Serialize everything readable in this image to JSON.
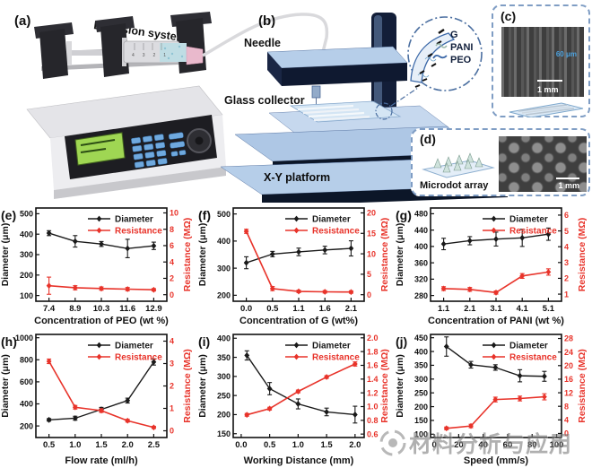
{
  "panels": {
    "a": {
      "letter": "(a)",
      "title": "Extrusion system",
      "syringe_scale_marks": "4 3 2 1"
    },
    "b": {
      "letter": "(b)",
      "needle_label": "Needle",
      "collector_label": "Glass collector",
      "platform_label": "X-Y platform",
      "inset": {
        "items": [
          {
            "label": "G"
          },
          {
            "label": "PANI"
          },
          {
            "label": "PEO"
          }
        ]
      }
    },
    "c": {
      "letter": "(c)",
      "annotation": "60 μm",
      "scale_bar": "1 mm"
    },
    "d": {
      "letter": "(d)",
      "label": "Microdot array",
      "scale_bar": "1 mm"
    }
  },
  "watermark": {
    "text": "材料分析与应用"
  },
  "colors": {
    "diameter": "#1a1a1a",
    "resistance": "#e8332a",
    "platform_face": "#b3cbe7",
    "platform_edge": "#0e1830",
    "inset_blue": "#3b68a8"
  },
  "chart_data": [
    {
      "id": "e",
      "letter": "(e)",
      "type": "line",
      "xlabel": "Concentration of PEO (wt %)",
      "x_categories": [
        "7.4",
        "8.9",
        "10.3",
        "11.6",
        "12.9"
      ],
      "left_axis": {
        "label": "Diameter (μm)",
        "lim": [
          72,
          528
        ],
        "ticks": [
          "100",
          "200",
          "300",
          "400",
          "500"
        ]
      },
      "right_axis": {
        "label": "Resistance (MΩ)",
        "lim": [
          -0.8,
          10.6
        ],
        "ticks": [
          "0",
          "2",
          "4",
          "6",
          "8",
          "10"
        ]
      },
      "series": [
        {
          "name": "Diameter",
          "axis": "left",
          "color_key": "diameter",
          "values": [
            405,
            365,
            352,
            330,
            343
          ],
          "errors": [
            12,
            28,
            12,
            45,
            18
          ]
        },
        {
          "name": "Resistance",
          "axis": "right",
          "color_key": "resistance",
          "values": [
            1.1,
            0.85,
            0.75,
            0.68,
            0.6
          ],
          "errors": [
            1.05,
            0.25,
            0.2,
            0.2,
            0.15
          ]
        }
      ]
    },
    {
      "id": "f",
      "letter": "(f)",
      "type": "line",
      "xlabel": "Concentration of G (wt%)",
      "x_categories": [
        "0.0",
        "0.5",
        "1.1",
        "1.6",
        "2.1"
      ],
      "left_axis": {
        "label": "Diameter (μm)",
        "lim": [
          178,
          522
        ],
        "ticks": [
          "200",
          "300",
          "400",
          "500"
        ]
      },
      "right_axis": {
        "label": "Resistance (MΩ)",
        "lim": [
          -1.6,
          21.2
        ],
        "ticks": [
          "0",
          "5",
          "10",
          "15",
          "20"
        ]
      },
      "series": [
        {
          "name": "Diameter",
          "axis": "left",
          "color_key": "diameter",
          "values": [
            320,
            352,
            360,
            367,
            373
          ],
          "errors": [
            22,
            10,
            14,
            14,
            28
          ]
        },
        {
          "name": "Resistance",
          "axis": "right",
          "color_key": "resistance",
          "values": [
            15.5,
            1.5,
            0.8,
            0.7,
            0.65
          ],
          "errors": [
            0.5,
            0.5,
            0.3,
            0.3,
            0.3
          ]
        }
      ]
    },
    {
      "id": "g",
      "letter": "(g)",
      "type": "line",
      "xlabel": "Concentration of PANI (wt %)",
      "x_categories": [
        "1.1",
        "2.1",
        "3.1",
        "4.1",
        "5.1"
      ],
      "left_axis": {
        "label": "Diameter (μm)",
        "lim": [
          266,
          494
        ],
        "ticks": [
          "280",
          "320",
          "360",
          "400",
          "440",
          "480"
        ]
      },
      "right_axis": {
        "label": "Resistance (MΩ)",
        "lim": [
          0.55,
          6.45
        ],
        "ticks": [
          "1",
          "2",
          "3",
          "4",
          "5",
          "6"
        ]
      },
      "series": [
        {
          "name": "Diameter",
          "axis": "left",
          "color_key": "diameter",
          "values": [
            406,
            414,
            418,
            421,
            430
          ],
          "errors": [
            14,
            10,
            17,
            21,
            15
          ]
        },
        {
          "name": "Resistance",
          "axis": "right",
          "color_key": "resistance",
          "values": [
            1.35,
            1.3,
            1.1,
            2.15,
            2.4
          ],
          "errors": [
            0.12,
            0.12,
            0.1,
            0.15,
            0.2
          ]
        }
      ]
    },
    {
      "id": "h",
      "letter": "(h)",
      "type": "line",
      "xlabel": "Flow rate (ml/h)",
      "x_categories": [
        "0.5",
        "1.0",
        "1.5",
        "2.0",
        "2.5"
      ],
      "left_axis": {
        "label": "Diameter (μm)",
        "lim": [
          95,
          1030
        ],
        "ticks": [
          "200",
          "400",
          "600",
          "800",
          "1000"
        ]
      },
      "right_axis": {
        "label": "Resistance (MΩ)",
        "lim": [
          -0.3,
          4.3
        ],
        "ticks": [
          "0",
          "1",
          "2",
          "3",
          "4"
        ]
      },
      "series": [
        {
          "name": "Diameter",
          "axis": "left",
          "color_key": "diameter",
          "values": [
            255,
            270,
            350,
            430,
            780
          ],
          "errors": [
            12,
            18,
            18,
            22,
            28
          ]
        },
        {
          "name": "Resistance",
          "axis": "right",
          "color_key": "resistance",
          "values": [
            3.1,
            1.05,
            0.9,
            0.45,
            0.15
          ],
          "errors": [
            0.1,
            0.08,
            0.08,
            0.06,
            0.05
          ]
        }
      ]
    },
    {
      "id": "i",
      "letter": "(i)",
      "type": "line",
      "xlabel": "Working Distance (mm)",
      "x": [
        0.1,
        0.5,
        1.0,
        1.5,
        2.0
      ],
      "xlim": [
        -0.14,
        2.16
      ],
      "x_ticks": [
        "0.0",
        "0.5",
        "1.0",
        "1.5",
        "2.0"
      ],
      "left_axis": {
        "label": "Diameter (μm)",
        "lim": [
          140,
          410
        ],
        "ticks": [
          "150",
          "200",
          "250",
          "300",
          "350",
          "400"
        ]
      },
      "right_axis": {
        "label": "Resistance (MΩ)",
        "lim": [
          0.55,
          2.05
        ],
        "ticks": [
          "0.6",
          "0.8",
          "1.0",
          "1.2",
          "1.4",
          "1.6",
          "1.8",
          "2.0"
        ]
      },
      "series": [
        {
          "name": "Diameter",
          "axis": "left",
          "color_key": "diameter",
          "values": [
            355,
            268,
            228,
            207,
            200
          ],
          "errors": [
            12,
            16,
            13,
            10,
            22
          ]
        },
        {
          "name": "Resistance",
          "axis": "right",
          "color_key": "resistance",
          "values": [
            0.88,
            0.97,
            1.22,
            1.43,
            1.62
          ],
          "errors": [
            0.02,
            0.02,
            0.02,
            0.02,
            0.03
          ]
        }
      ]
    },
    {
      "id": "j",
      "letter": "(j)",
      "type": "line",
      "xlabel": "Speed (mm/s)",
      "x": [
        10,
        30,
        50,
        70,
        90
      ],
      "xlim": [
        -3,
        104
      ],
      "x_ticks": [
        "0",
        "20",
        "40",
        "60",
        "80",
        "100"
      ],
      "left_axis": {
        "label": "Diameter (μm)",
        "lim": [
          88,
          462
        ],
        "ticks": [
          "100",
          "150",
          "200",
          "250",
          "300",
          "350",
          "400",
          "450"
        ]
      },
      "right_axis": {
        "label": "Resistance (MΩ)",
        "lim": [
          -1.2,
          29.2
        ],
        "ticks": [
          "0",
          "4",
          "8",
          "12",
          "16",
          "20",
          "24",
          "28"
        ]
      },
      "series": [
        {
          "name": "Diameter",
          "axis": "left",
          "color_key": "diameter",
          "values": [
            418,
            352,
            342,
            312,
            310
          ],
          "errors": [
            35,
            12,
            10,
            22,
            18
          ]
        },
        {
          "name": "Resistance",
          "axis": "right",
          "color_key": "resistance",
          "values": [
            1.5,
            2.2,
            10,
            10.3,
            10.8
          ],
          "errors": [
            0.4,
            0.5,
            0.7,
            0.7,
            0.9
          ]
        }
      ]
    }
  ]
}
